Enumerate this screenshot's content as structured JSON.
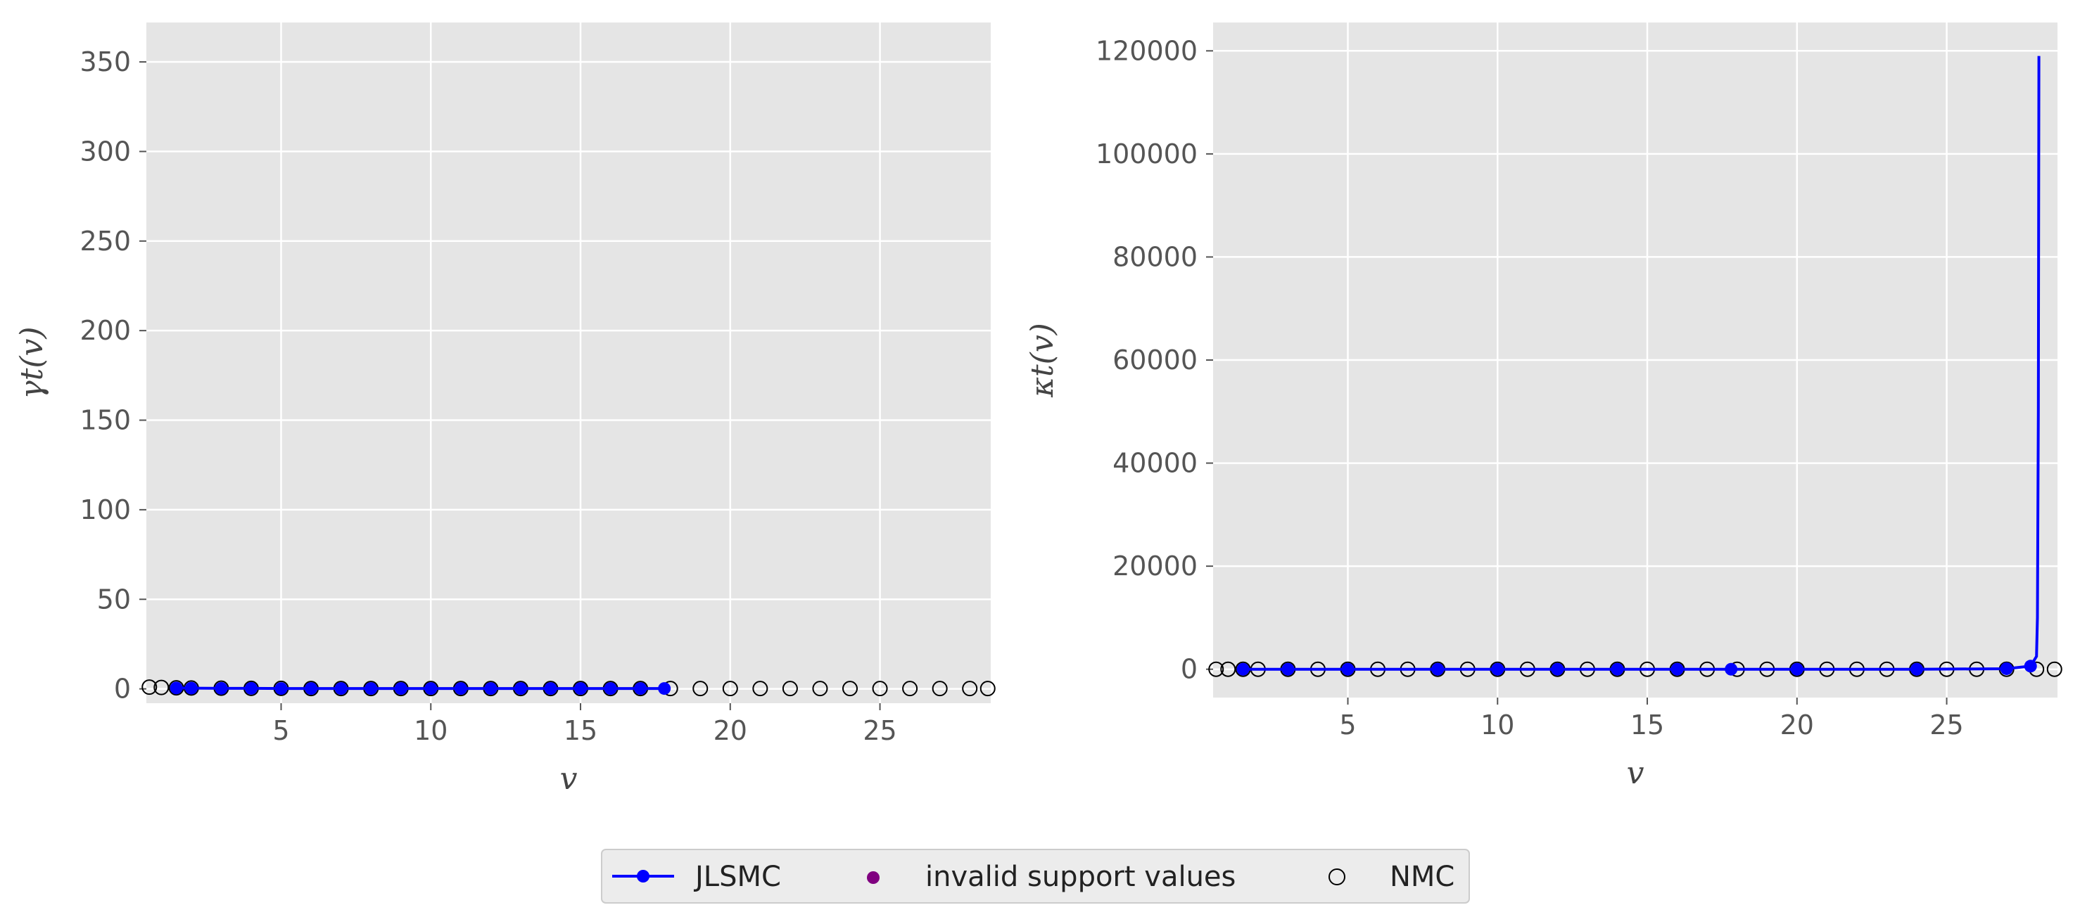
{
  "colors": {
    "jlsmc": "#0000ff",
    "invalid": "#800080",
    "nmc_edge": "#000000",
    "panel_bg": "#e5e5e5",
    "grid": "#ffffff"
  },
  "legend": {
    "placement": "bottom-center",
    "entries": [
      {
        "label": "JLSMC",
        "marker": "filled-circle-line"
      },
      {
        "label": "invalid support values",
        "marker": "filled-circle"
      },
      {
        "label": "NMC",
        "marker": "open-circle"
      }
    ]
  },
  "chart_data": [
    {
      "type": "line",
      "ylabel": "γt(v)",
      "xlabel": "v",
      "xlim": [
        0.5,
        28.7
      ],
      "ylim": [
        -8,
        372
      ],
      "xticks": [
        "5",
        "10",
        "15",
        "20",
        "25"
      ],
      "yticks": [
        "0",
        "50",
        "100",
        "150",
        "200",
        "250",
        "300",
        "350"
      ],
      "grid": true,
      "series": [
        {
          "name": "JLSMC",
          "x": [
            1.5,
            2,
            3,
            4,
            5,
            6,
            7,
            8,
            9,
            10,
            11,
            12,
            13,
            14,
            15,
            16,
            17,
            17.8
          ],
          "y": [
            0.5,
            0.4,
            0.3,
            0.3,
            0.2,
            0.2,
            0.2,
            0.2,
            0.2,
            0.2,
            0.2,
            0.2,
            0.2,
            0.2,
            0.2,
            0.2,
            0.2,
            0.2
          ]
        },
        {
          "name": "NMC",
          "x": [
            0.6,
            1,
            1.5,
            2,
            3,
            4,
            5,
            6,
            7,
            8,
            9,
            10,
            11,
            12,
            13,
            14,
            15,
            16,
            17,
            18,
            19,
            20,
            21,
            22,
            23,
            24,
            25,
            26,
            27,
            28,
            28.6
          ],
          "y": [
            1,
            0.8,
            0.6,
            0.5,
            0.4,
            0.3,
            0.3,
            0.2,
            0.2,
            0.2,
            0.2,
            0.2,
            0.2,
            0.2,
            0.2,
            0.2,
            0.2,
            0.2,
            0.2,
            0.2,
            0.2,
            0.2,
            0.2,
            0.2,
            0.2,
            0.2,
            0.2,
            0.2,
            0.2,
            0.2,
            0.2
          ]
        }
      ]
    },
    {
      "type": "line",
      "ylabel": "κt(v)",
      "xlabel": "v",
      "xlim": [
        0.5,
        28.7
      ],
      "ylim": [
        -5500,
        125500
      ],
      "xticks": [
        "5",
        "10",
        "15",
        "20",
        "25"
      ],
      "yticks": [
        "0",
        "20000",
        "40000",
        "60000",
        "80000",
        "100000",
        "120000"
      ],
      "grid": true,
      "series": [
        {
          "name": "JLSMC",
          "x": [
            1.5,
            3,
            5,
            8,
            10,
            12,
            14,
            16,
            17.8,
            20,
            24,
            27,
            27.8,
            28,
            28.03,
            28.06,
            28.08
          ],
          "y": [
            0,
            0,
            0,
            0,
            0,
            0,
            0,
            0,
            0,
            0,
            0,
            100,
            600,
            2500,
            10000,
            50000,
            119000
          ]
        },
        {
          "name": "NMC",
          "x": [
            0.6,
            1,
            1.5,
            2,
            3,
            4,
            5,
            6,
            7,
            8,
            9,
            10,
            11,
            12,
            13,
            14,
            15,
            16,
            17,
            18,
            19,
            20,
            21,
            22,
            23,
            24,
            25,
            26,
            27,
            28,
            28.6
          ],
          "y": [
            0,
            0,
            0,
            0,
            0,
            0,
            0,
            0,
            0,
            0,
            0,
            0,
            0,
            0,
            0,
            0,
            0,
            0,
            0,
            0,
            0,
            0,
            0,
            0,
            0,
            0,
            0,
            0,
            0,
            0,
            0
          ]
        }
      ]
    }
  ]
}
